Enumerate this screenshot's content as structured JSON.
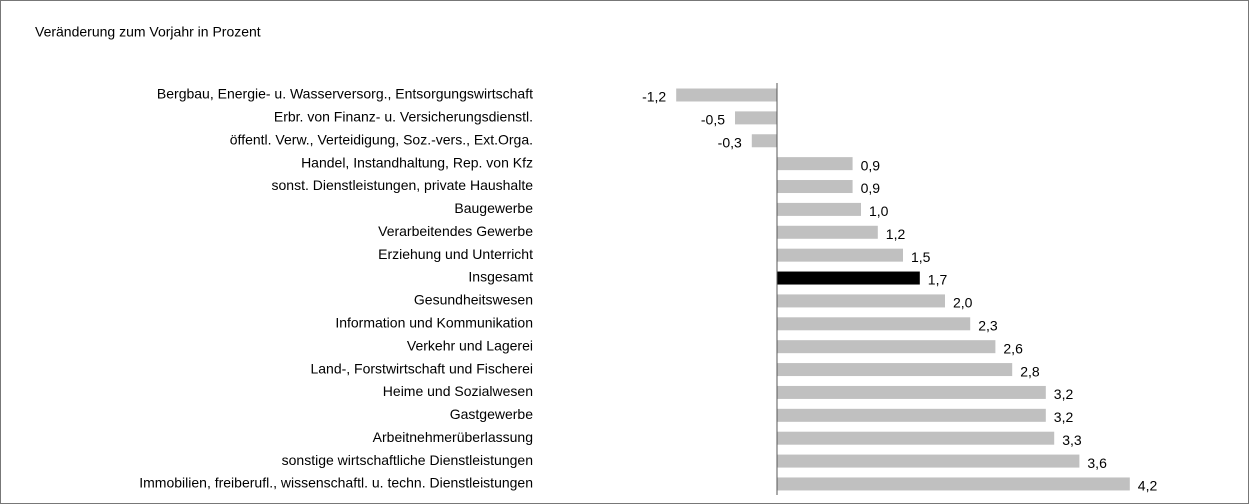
{
  "chart_data": {
    "type": "bar",
    "orientation": "horizontal",
    "title": "Veränderung zum Vorjahr in Prozent",
    "categories": [
      "Bergbau, Energie- u. Wasserversorg., Entsorgungswirtschaft",
      "Erbr. von Finanz- u. Versicherungsdienstl.",
      "öffentl. Verw., Verteidigung, Soz.-vers., Ext.Orga.",
      "Handel, Instandhaltung, Rep. von Kfz",
      "sonst. Dienstleistungen, private Haushalte",
      "Baugewerbe",
      "Verarbeitendes Gewerbe",
      "Erziehung und Unterricht",
      "Insgesamt",
      "Gesundheitswesen",
      "Information und Kommunikation",
      "Verkehr und Lagerei",
      "Land-, Forstwirtschaft und Fischerei",
      "Heime und Sozialwesen",
      "Gastgewerbe",
      "Arbeitnehmerüberlassung",
      "sonstige wirtschaftliche Dienstleistungen",
      "Immobilien, freiberufl., wissenschaftl. u. techn. Dienstleistungen"
    ],
    "values": [
      -1.2,
      -0.5,
      -0.3,
      0.9,
      0.9,
      1.0,
      1.2,
      1.5,
      1.7,
      2.0,
      2.3,
      2.6,
      2.8,
      3.2,
      3.2,
      3.3,
      3.6,
      4.2
    ],
    "value_labels": [
      "-1,2",
      "-0,5",
      "-0,3",
      "0,9",
      "0,9",
      "1,0",
      "1,2",
      "1,5",
      "1,7",
      "2,0",
      "2,3",
      "2,6",
      "2,8",
      "3,2",
      "3,2",
      "3,3",
      "3,6",
      "4,2"
    ],
    "colors": [
      "#c0c0c0",
      "#c0c0c0",
      "#c0c0c0",
      "#c0c0c0",
      "#c0c0c0",
      "#c0c0c0",
      "#c0c0c0",
      "#c0c0c0",
      "#000000",
      "#c0c0c0",
      "#c0c0c0",
      "#c0c0c0",
      "#c0c0c0",
      "#c0c0c0",
      "#c0c0c0",
      "#c0c0c0",
      "#c0c0c0",
      "#c0c0c0"
    ]
  }
}
